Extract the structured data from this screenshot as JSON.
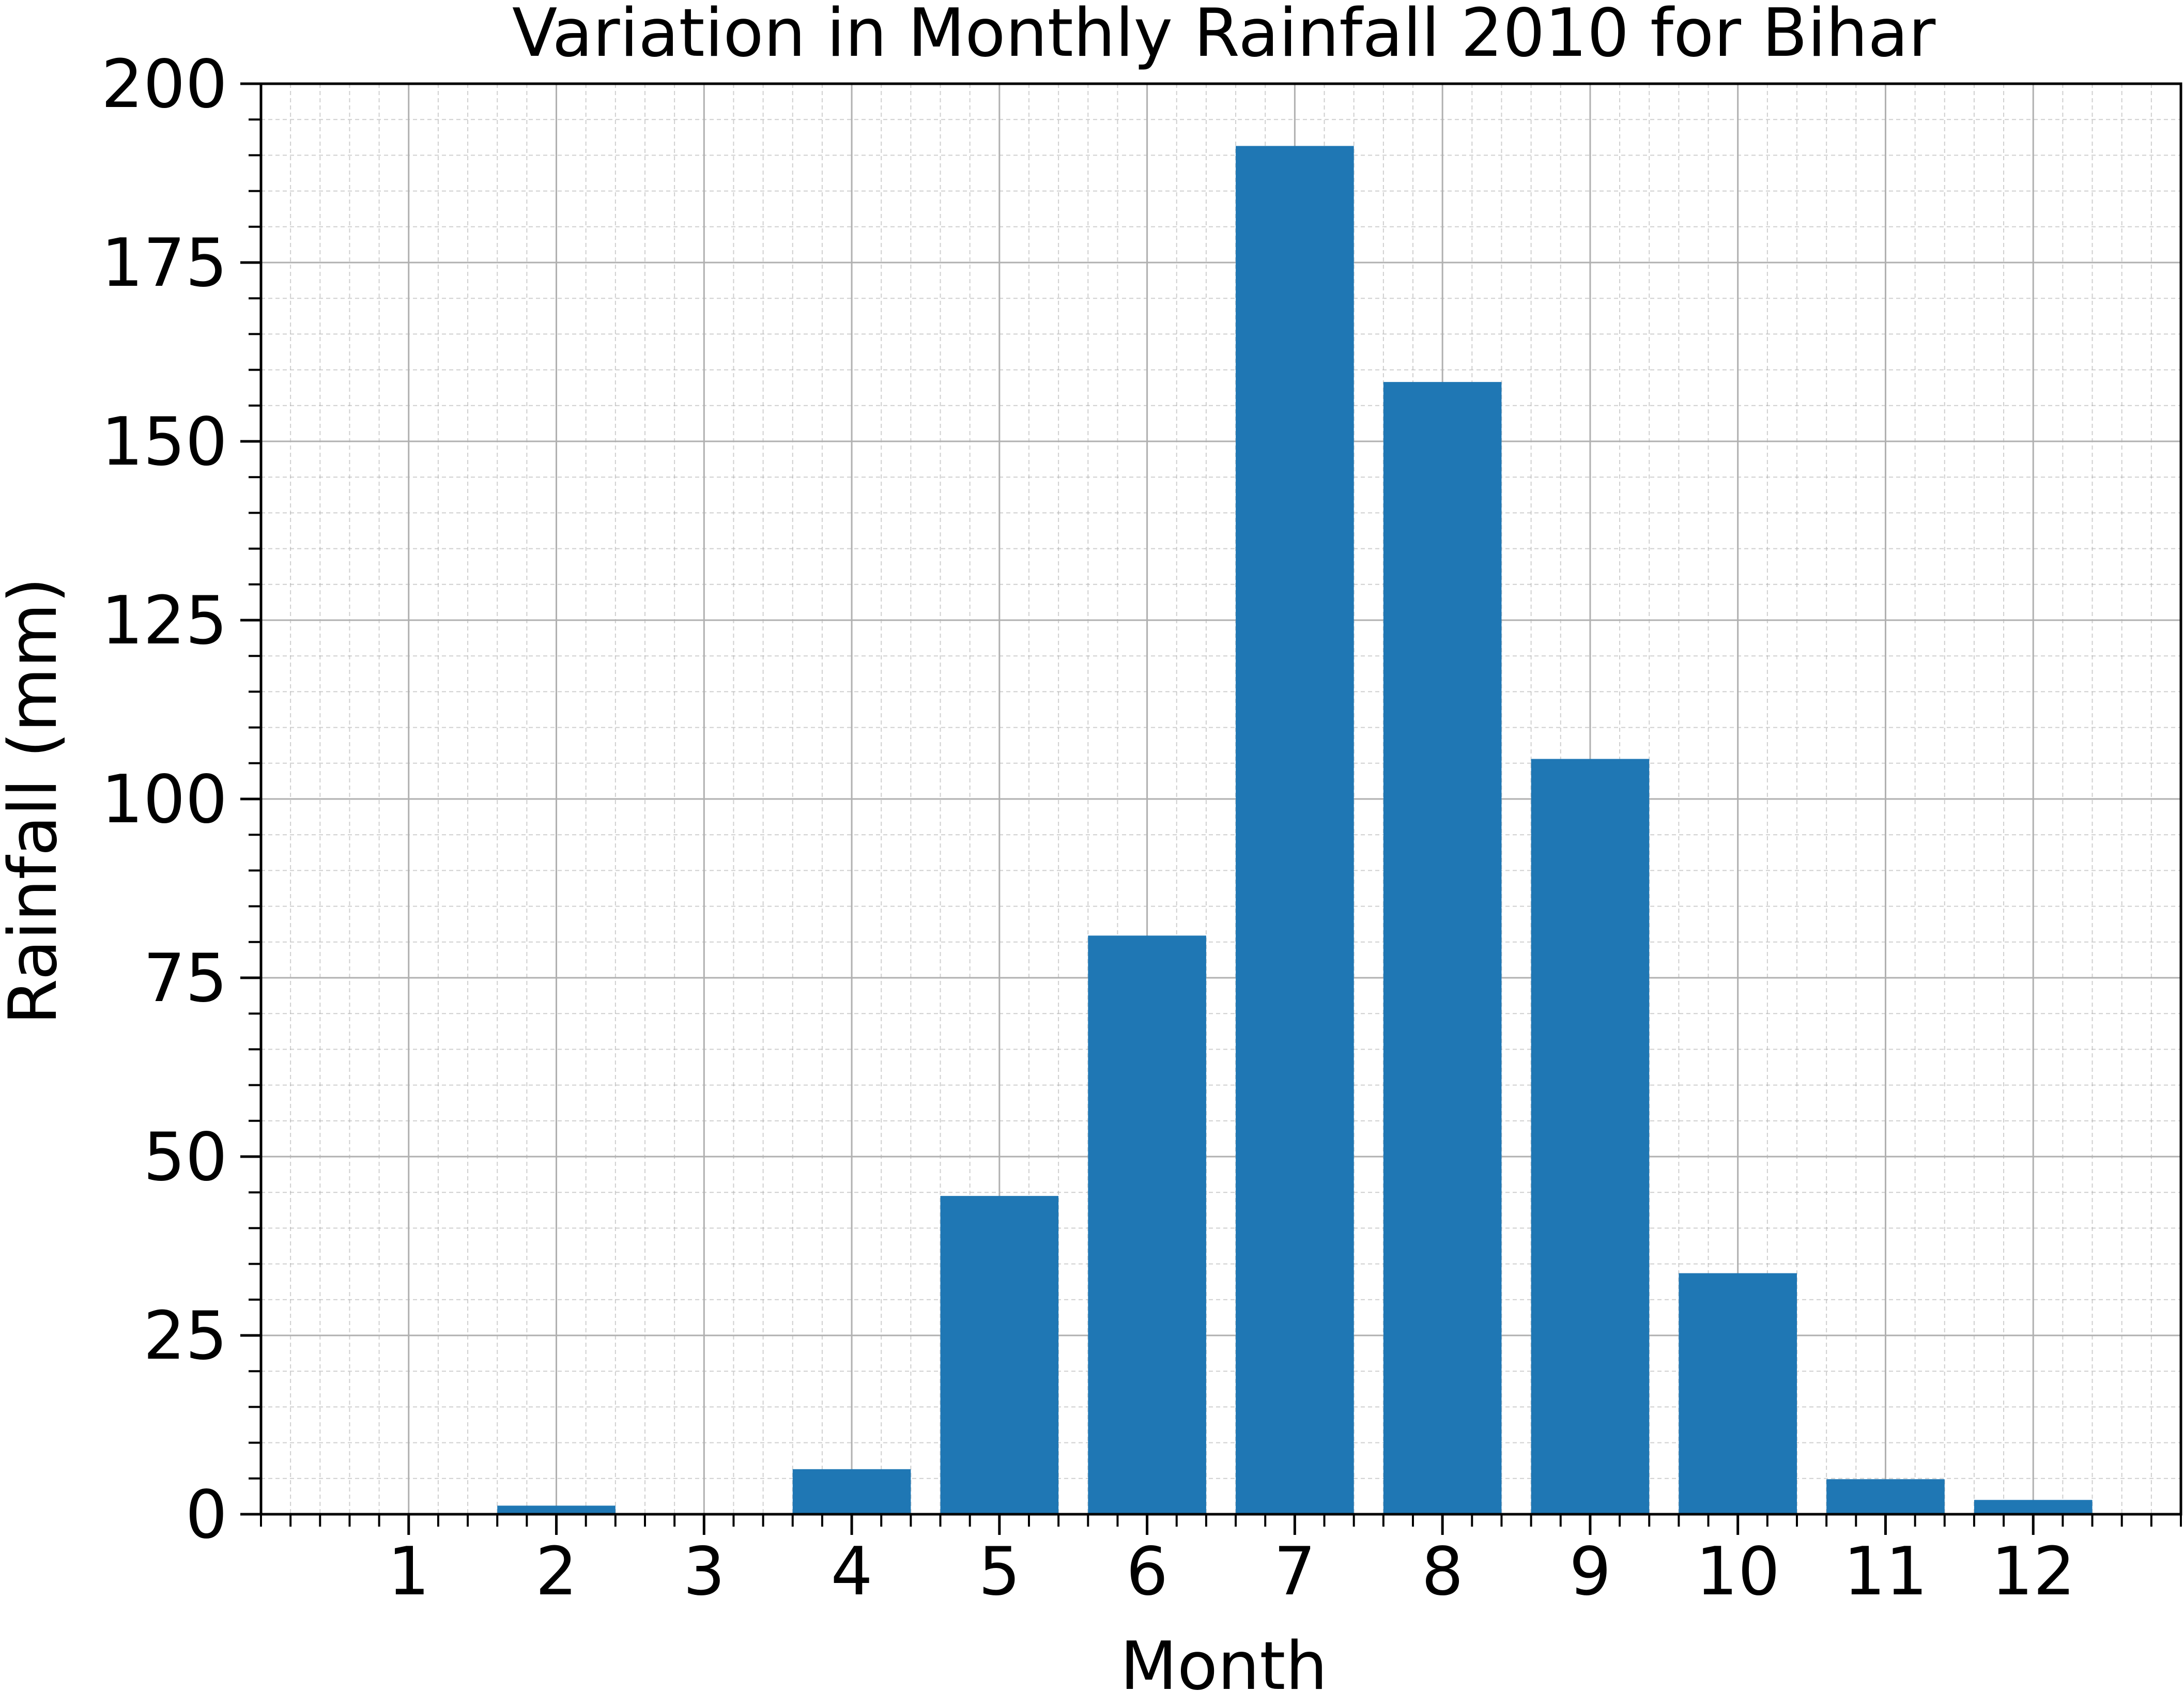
{
  "chart_data": {
    "type": "bar",
    "title": "Variation in Monthly Rainfall 2010 for Bihar",
    "xlabel": "Month",
    "ylabel": "Rainfall (mm)",
    "categories": [
      "1",
      "2",
      "3",
      "4",
      "5",
      "6",
      "7",
      "8",
      "9",
      "10",
      "11",
      "12"
    ],
    "x": [
      1,
      2,
      3,
      4,
      5,
      6,
      7,
      8,
      9,
      10,
      11,
      12
    ],
    "values": [
      0,
      1.2,
      0,
      6.3,
      44.5,
      80.9,
      191.3,
      158.3,
      105.6,
      33.7,
      4.9,
      2.0
    ],
    "xlim": [
      0.0,
      13.0
    ],
    "ylim": [
      0,
      200
    ],
    "yticks": [
      0,
      25,
      50,
      75,
      100,
      125,
      150,
      175,
      200
    ],
    "grid": true,
    "grid_minor": true,
    "bar_color": "#1f77b4"
  }
}
